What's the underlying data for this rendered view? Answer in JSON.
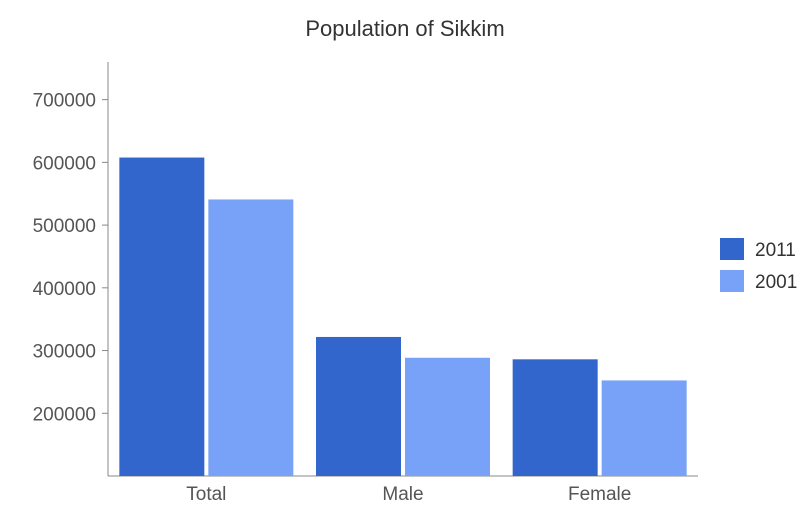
{
  "chart_data": {
    "type": "bar",
    "title": "Population of Sikkim",
    "xlabel": "",
    "ylabel": "",
    "categories": [
      "Total",
      "Male",
      "Female"
    ],
    "series": [
      {
        "name": "2011",
        "color": "#3366cc",
        "values": [
          607688,
          321661,
          286027
        ]
      },
      {
        "name": "2001",
        "color": "#77a2f8",
        "values": [
          540851,
          288484,
          252367
        ]
      }
    ],
    "ylim": [
      100000,
      760000
    ],
    "yticks": [
      200000,
      300000,
      400000,
      500000,
      600000,
      700000
    ],
    "ytick_labels": [
      "200000",
      "300000",
      "400000",
      "500000",
      "600000",
      "700000"
    ],
    "grid": false,
    "legend_position": "right"
  }
}
